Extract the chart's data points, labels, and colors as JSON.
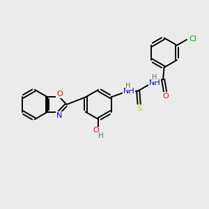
{
  "background_color": "#ebebeb",
  "bond_color": "#000000",
  "atom_colors": {
    "O": "#ff0000",
    "N": "#0000cd",
    "S": "#cccc00",
    "Cl": "#00aa00",
    "C": "#000000",
    "H": "#607070"
  },
  "lw": 1.4,
  "fs": 8.0,
  "r_hex": 0.72,
  "r_5": 0.55
}
